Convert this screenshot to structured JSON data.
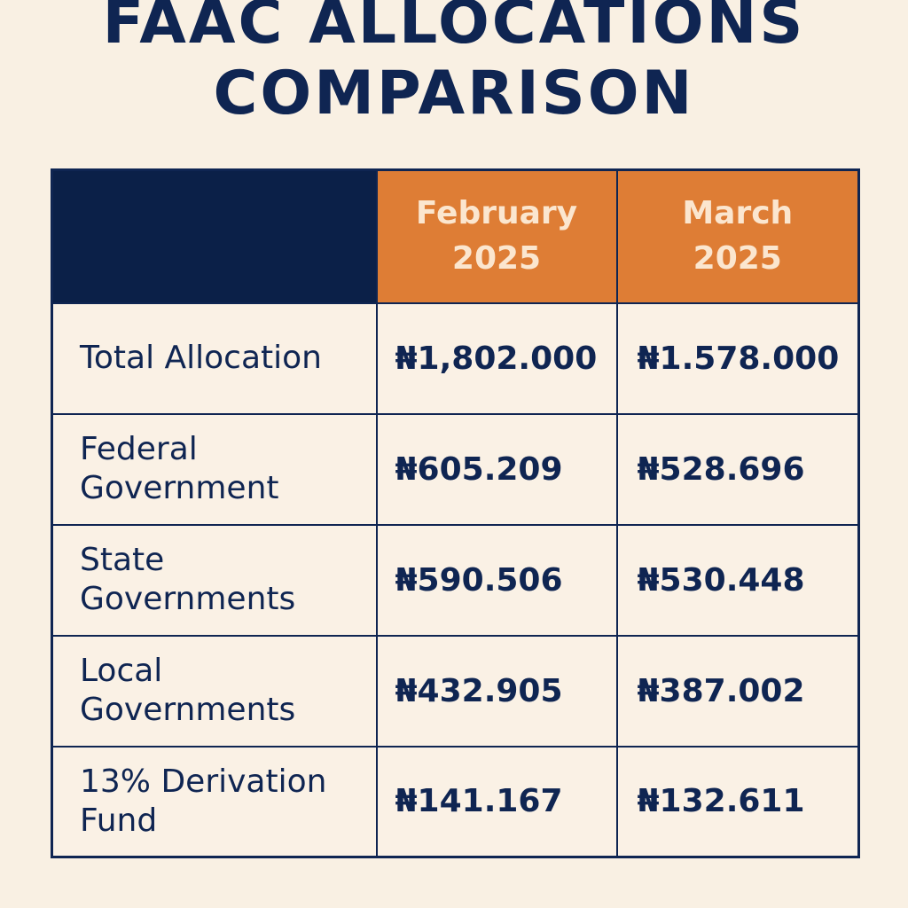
{
  "title": {
    "line1": "FAAC ALLOCATIONS",
    "line2": "COMPARISON"
  },
  "table": {
    "headers": [
      {
        "line1": "February",
        "line2": "2025"
      },
      {
        "line1": "March",
        "line2": "2025"
      }
    ],
    "rows": [
      {
        "label1": "Total Allocation",
        "label2": "",
        "february": "₦1,802.000",
        "march": "₦1.578.000"
      },
      {
        "label1": "Federal",
        "label2": "Government",
        "february": "₦605.209",
        "march": "₦528.696"
      },
      {
        "label1": "State",
        "label2": "Governments",
        "february": "₦590.506",
        "march": "₦530.448"
      },
      {
        "label1": "Local",
        "label2": "Governments",
        "february": "₦432.905",
        "march": "₦387.002"
      },
      {
        "label1": "13% Derivation",
        "label2": "Fund",
        "february": "₦141.167",
        "march": "₦132.611"
      }
    ]
  },
  "colors": {
    "background": "#f9f0e3",
    "navy": "#0f2552",
    "header_dark": "#0b2048",
    "header_orange": "#de7d35",
    "header_text": "#fbe6cf"
  }
}
